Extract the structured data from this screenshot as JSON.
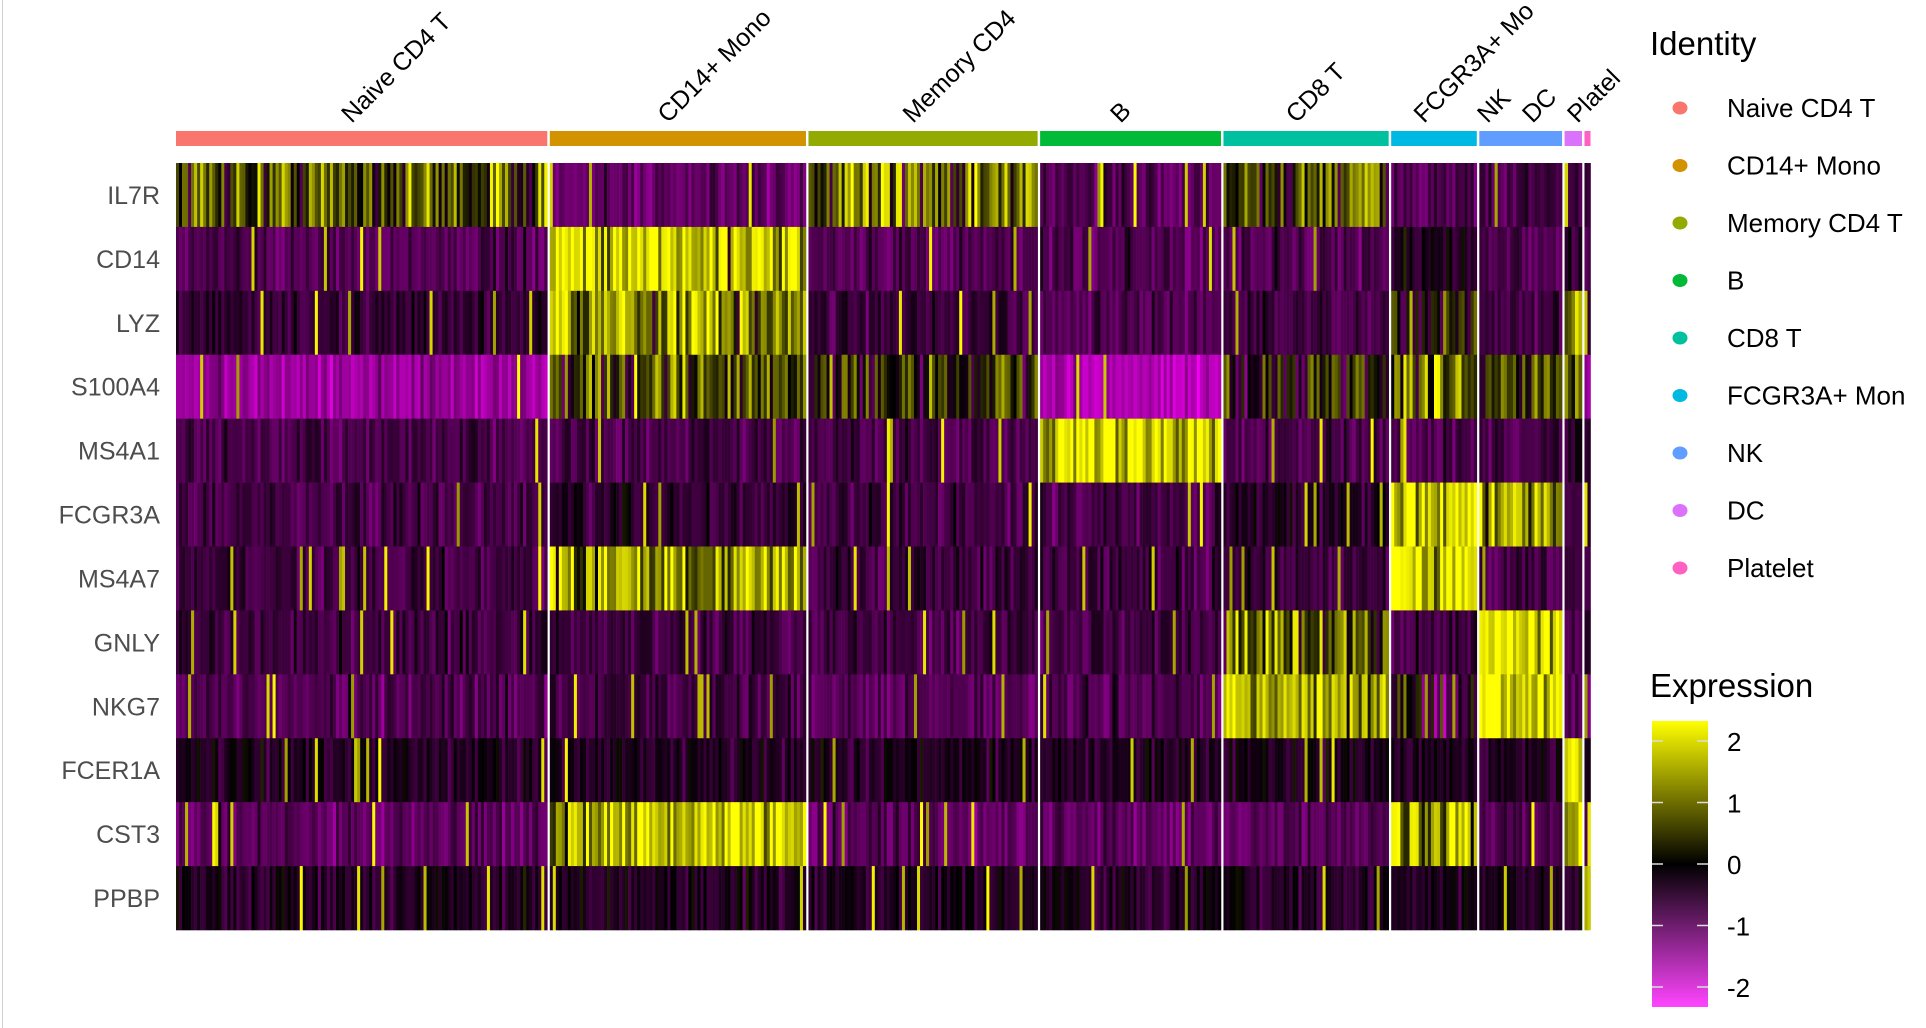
{
  "chart_data": {
    "type": "heatmap",
    "groups": [
      "Naive CD4 T",
      "CD14+ Mono",
      "Memory CD4 T",
      "B",
      "CD8 T",
      "FCGR3A+ Mono",
      "NK",
      "DC",
      "Platelet"
    ],
    "group_labels_shown": [
      "Naive CD4 T",
      "CD14+ Mono",
      "Memory CD4",
      "B",
      "CD8 T",
      "FCGR3A+ Mo",
      "NK",
      "DC",
      "Platel"
    ],
    "group_colors": [
      "#F8766D",
      "#D39200",
      "#93AA00",
      "#00BA38",
      "#00C19F",
      "#00B9E3",
      "#619CFF",
      "#DB72FB",
      "#FF61C3"
    ],
    "group_cell_fraction": [
      0.263,
      0.182,
      0.163,
      0.129,
      0.118,
      0.062,
      0.06,
      0.014,
      0.006
    ],
    "genes": [
      "IL7R",
      "CD14",
      "LYZ",
      "S100A4",
      "MS4A1",
      "FCGR3A",
      "MS4A7",
      "GNLY",
      "NKG7",
      "FCER1A",
      "CST3",
      "PPBP"
    ],
    "mean_expression": [
      [
        0.8,
        -1.0,
        0.9,
        -0.8,
        0.5,
        -0.8,
        -0.7,
        -0.8,
        -0.8
      ],
      [
        -0.8,
        2.0,
        -0.8,
        -0.8,
        -0.8,
        -0.3,
        -0.8,
        -0.5,
        -0.8
      ],
      [
        -0.5,
        1.5,
        -0.5,
        -0.8,
        -0.6,
        0.3,
        -0.6,
        1.4,
        -0.6
      ],
      [
        -1.5,
        0.6,
        0.3,
        -1.8,
        0.3,
        1.0,
        0.4,
        0.8,
        -1.5
      ],
      [
        -0.7,
        -0.7,
        -0.7,
        2.2,
        -0.7,
        -0.7,
        -0.7,
        -0.5,
        -0.7
      ],
      [
        -0.7,
        -0.5,
        -0.7,
        -0.7,
        -0.3,
        2.3,
        1.5,
        -0.7,
        -0.7
      ],
      [
        -0.6,
        1.5,
        -0.6,
        -0.6,
        -0.6,
        2.2,
        -0.7,
        -0.5,
        -0.6
      ],
      [
        -0.6,
        -0.6,
        -0.6,
        -0.6,
        1.0,
        -0.6,
        2.4,
        -0.6,
        -0.6
      ],
      [
        -0.8,
        -0.6,
        -0.8,
        -0.8,
        1.6,
        -0.2,
        2.4,
        -0.8,
        -0.8
      ],
      [
        -0.3,
        -0.3,
        -0.3,
        -0.3,
        -0.3,
        -0.3,
        -0.3,
        2.2,
        -0.3
      ],
      [
        -0.9,
        1.8,
        -0.9,
        -0.9,
        -0.9,
        1.6,
        -0.8,
        1.8,
        -0.9
      ],
      [
        -0.3,
        -0.3,
        -0.3,
        -0.3,
        -0.3,
        -0.3,
        -0.3,
        -0.3,
        2.4
      ]
    ],
    "color_scale": {
      "low": "#FF00FF",
      "mid": "#000000",
      "high": "#FFFF00",
      "range": [
        -2.5,
        2.5
      ]
    },
    "legend": {
      "identity_title": "Identity",
      "identity_items": [
        "Naive CD4 T",
        "CD14+ Mono",
        "Memory CD4 T",
        "B",
        "CD8 T",
        "FCGR3A+ Mon",
        "NK",
        "DC",
        "Platelet"
      ],
      "expression_title": "Expression",
      "expression_ticks": [
        "2",
        "1",
        "0",
        "-1",
        "-2"
      ],
      "expression_tick_values": [
        2,
        1,
        0,
        -1,
        -2
      ],
      "placement": "right"
    }
  }
}
